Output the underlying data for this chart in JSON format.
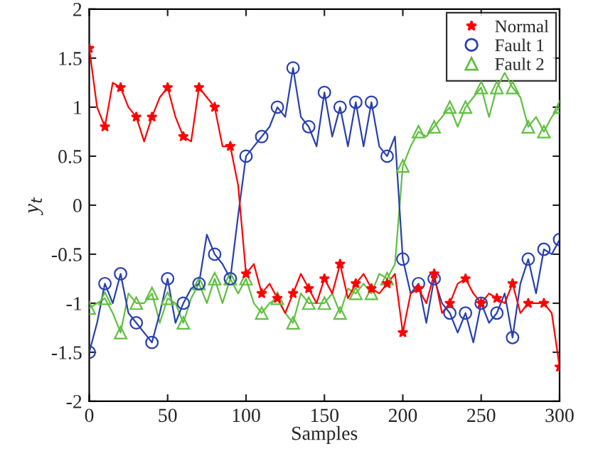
{
  "chart_data": {
    "type": "line",
    "xlabel": "Samples",
    "ylabel": "y$_{t}$",
    "x": [
      0,
      5,
      10,
      15,
      20,
      25,
      30,
      35,
      40,
      45,
      50,
      55,
      60,
      65,
      70,
      75,
      80,
      85,
      90,
      95,
      100,
      105,
      110,
      115,
      120,
      125,
      130,
      135,
      140,
      145,
      150,
      155,
      160,
      165,
      170,
      175,
      180,
      185,
      190,
      195,
      200,
      205,
      210,
      215,
      220,
      225,
      230,
      235,
      240,
      245,
      250,
      255,
      260,
      265,
      270,
      275,
      280,
      285,
      290,
      295,
      300
    ],
    "series": [
      {
        "name": "Normal",
        "color": "#ff0000",
        "marker": "star",
        "values": [
          1.6,
          1.0,
          0.8,
          1.25,
          1.2,
          1.0,
          0.9,
          0.65,
          0.9,
          1.1,
          1.2,
          0.9,
          0.7,
          0.65,
          1.2,
          1.1,
          1.0,
          0.6,
          0.6,
          0.2,
          -0.7,
          -0.6,
          -0.9,
          -0.8,
          -0.95,
          -1.1,
          -0.9,
          -0.7,
          -0.85,
          -1.0,
          -0.75,
          -0.9,
          -0.6,
          -0.95,
          -0.8,
          -0.7,
          -0.85,
          -0.9,
          -0.8,
          -0.7,
          -1.3,
          -0.9,
          -0.85,
          -1.0,
          -0.7,
          -1.1,
          -1.0,
          -0.8,
          -0.75,
          -0.9,
          -1.0,
          -0.9,
          -0.95,
          -1.0,
          -0.8,
          -1.1,
          -1.0,
          -1.0,
          -1.0,
          -1.1,
          -1.65
        ]
      },
      {
        "name": "Fault 1",
        "color": "#2840b0",
        "marker": "circle",
        "values": [
          -1.5,
          -1.2,
          -0.8,
          -1.0,
          -0.7,
          -1.1,
          -1.2,
          -1.3,
          -1.4,
          -1.1,
          -0.75,
          -1.2,
          -1.0,
          -0.85,
          -0.8,
          -0.3,
          -0.5,
          -0.6,
          -0.75,
          -0.1,
          0.5,
          0.6,
          0.7,
          0.8,
          1.0,
          0.9,
          1.4,
          0.9,
          0.8,
          0.6,
          1.15,
          0.7,
          1.0,
          0.6,
          1.05,
          0.6,
          1.05,
          0.6,
          0.5,
          0.7,
          -0.55,
          -0.9,
          -0.8,
          -1.2,
          -0.75,
          -1.0,
          -1.1,
          -1.3,
          -1.1,
          -1.4,
          -1.0,
          -1.2,
          -1.1,
          -0.9,
          -1.35,
          -0.8,
          -0.55,
          -0.9,
          -0.45,
          -0.5,
          -0.35
        ]
      },
      {
        "name": "Fault 2",
        "color": "#60c040",
        "marker": "triangle",
        "values": [
          -1.05,
          -1.0,
          -0.95,
          -1.1,
          -1.3,
          -0.9,
          -1.0,
          -1.0,
          -0.9,
          -1.2,
          -0.95,
          -1.0,
          -1.2,
          -0.95,
          -0.8,
          -1.0,
          -0.75,
          -1.0,
          -0.75,
          -0.9,
          -0.75,
          -1.0,
          -1.1,
          -1.0,
          -0.95,
          -1.1,
          -1.2,
          -0.9,
          -1.0,
          -1.0,
          -1.0,
          -0.9,
          -1.1,
          -0.85,
          -0.9,
          -0.8,
          -0.9,
          -0.7,
          -0.75,
          -0.6,
          0.4,
          0.6,
          0.75,
          0.7,
          0.8,
          0.9,
          1.0,
          0.8,
          1.0,
          1.1,
          1.2,
          0.9,
          1.2,
          1.35,
          1.2,
          1.1,
          0.8,
          0.9,
          0.75,
          0.9,
          1.0
        ]
      }
    ],
    "xlim": [
      0,
      300
    ],
    "xticks": [
      0,
      50,
      100,
      150,
      200,
      250,
      300
    ],
    "ylim": [
      -2,
      2
    ],
    "yticks": [
      -2,
      -1.5,
      -1,
      -0.5,
      0,
      0.5,
      1,
      1.5,
      2
    ],
    "legend": "top right",
    "grid": false,
    "line_style": "solid"
  }
}
